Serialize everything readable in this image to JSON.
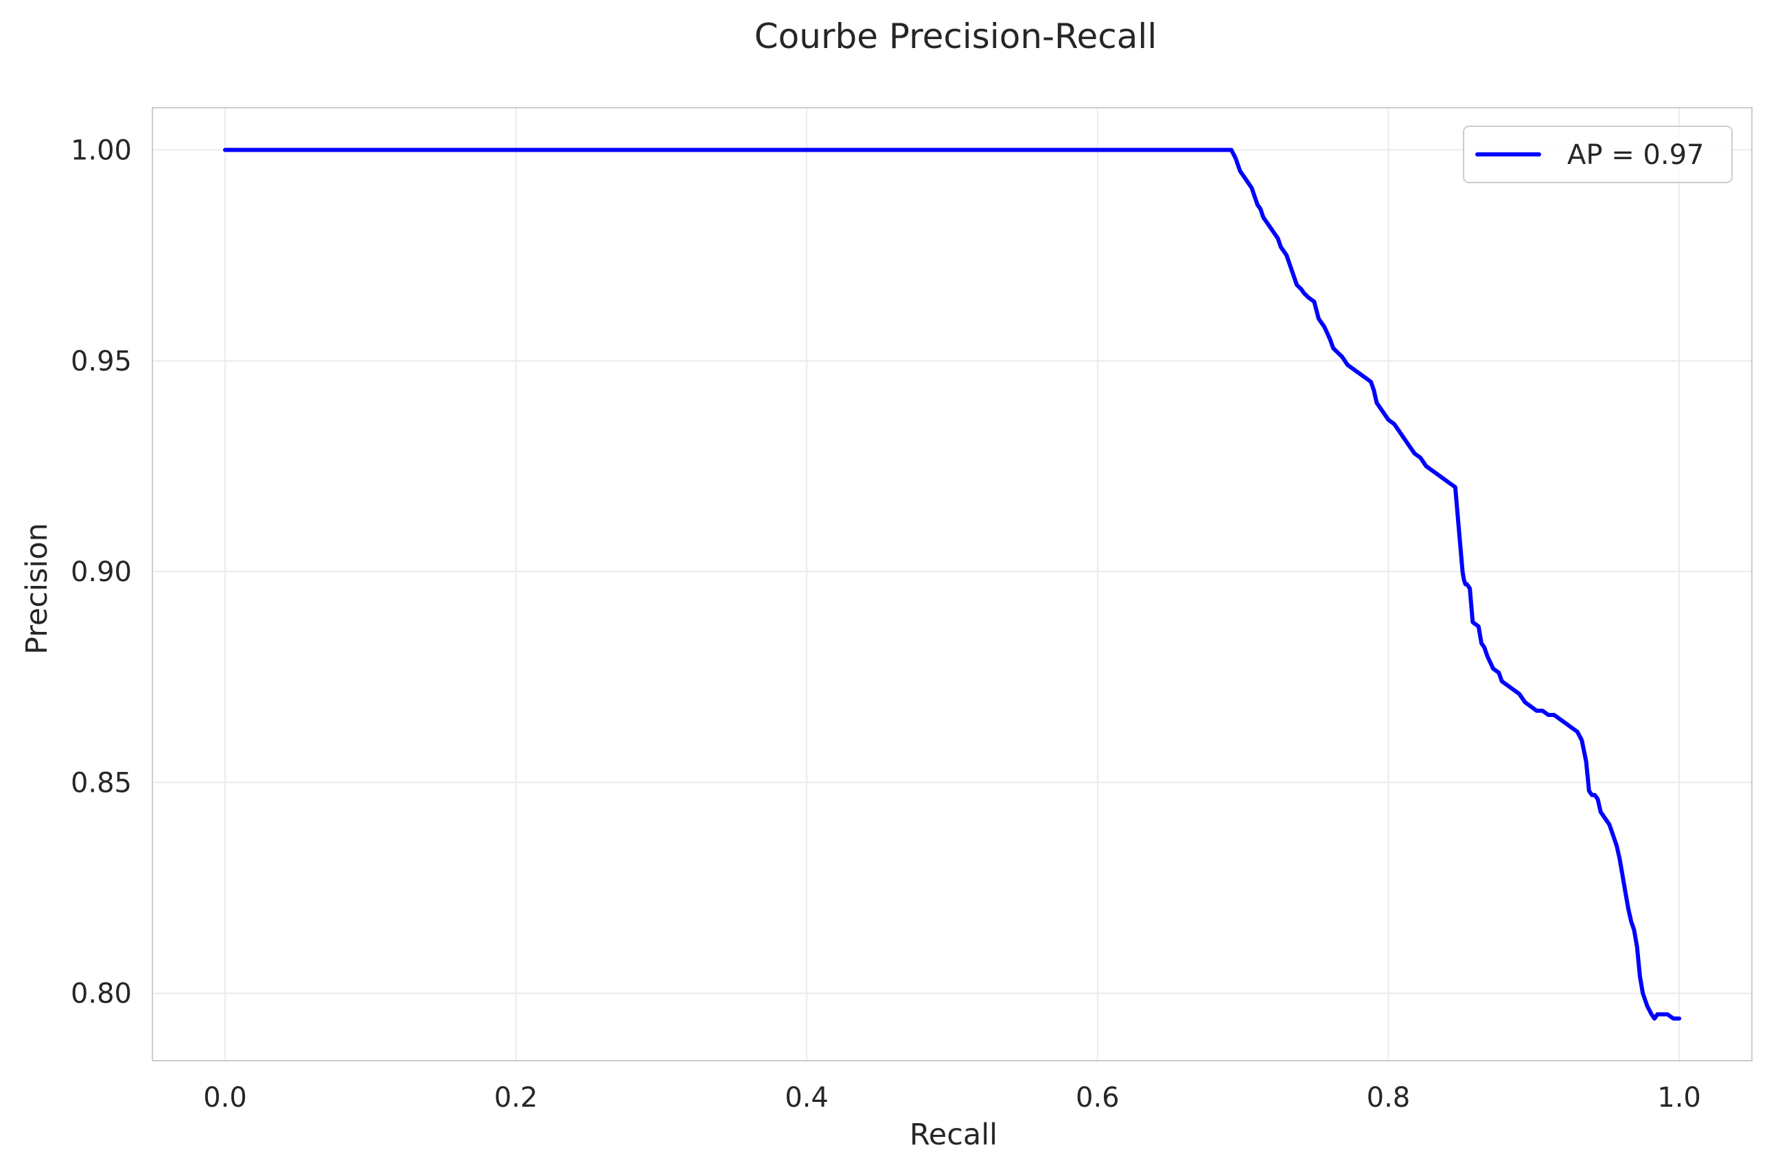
{
  "chart_data": {
    "type": "line",
    "title": "Courbe Precision-Recall",
    "xlabel": "Recall",
    "ylabel": "Precision",
    "xlim": [
      -0.05,
      1.05
    ],
    "ylim": [
      0.784,
      1.01
    ],
    "xticks": [
      0.0,
      0.2,
      0.4,
      0.6,
      0.8,
      1.0
    ],
    "xtick_labels": [
      "0.0",
      "0.2",
      "0.4",
      "0.6",
      "0.8",
      "1.0"
    ],
    "yticks": [
      0.8,
      0.85,
      0.9,
      0.95,
      1.0
    ],
    "ytick_labels": [
      "0.80",
      "0.85",
      "0.90",
      "0.95",
      "1.00"
    ],
    "grid": true,
    "legend_position": "top-right",
    "series": [
      {
        "name": "AP = 0.97",
        "color": "#0000ff",
        "x": [
          0.0,
          0.692,
          0.695,
          0.698,
          0.702,
          0.706,
          0.71,
          0.712,
          0.714,
          0.718,
          0.72,
          0.724,
          0.726,
          0.73,
          0.732,
          0.735,
          0.737,
          0.74,
          0.742,
          0.745,
          0.749,
          0.752,
          0.754,
          0.756,
          0.76,
          0.762,
          0.765,
          0.768,
          0.772,
          0.776,
          0.78,
          0.784,
          0.788,
          0.79,
          0.792,
          0.796,
          0.8,
          0.804,
          0.808,
          0.81,
          0.814,
          0.818,
          0.822,
          0.826,
          0.83,
          0.834,
          0.838,
          0.842,
          0.846,
          0.848,
          0.85,
          0.851,
          0.852,
          0.853,
          0.854,
          0.856,
          0.858,
          0.862,
          0.864,
          0.866,
          0.868,
          0.872,
          0.876,
          0.878,
          0.882,
          0.886,
          0.89,
          0.894,
          0.898,
          0.902,
          0.906,
          0.91,
          0.914,
          0.918,
          0.922,
          0.926,
          0.93,
          0.933,
          0.936,
          0.938,
          0.94,
          0.942,
          0.944,
          0.946,
          0.948,
          0.952,
          0.955,
          0.957,
          0.959,
          0.961,
          0.963,
          0.965,
          0.967,
          0.969,
          0.971,
          0.973,
          0.975,
          0.978,
          0.981,
          0.983,
          0.985,
          0.988,
          0.992,
          0.996,
          1.0
        ],
        "y": [
          1.0,
          1.0,
          0.998,
          0.995,
          0.993,
          0.991,
          0.987,
          0.986,
          0.984,
          0.982,
          0.981,
          0.979,
          0.977,
          0.975,
          0.973,
          0.97,
          0.968,
          0.967,
          0.966,
          0.965,
          0.964,
          0.96,
          0.959,
          0.958,
          0.955,
          0.953,
          0.952,
          0.951,
          0.949,
          0.948,
          0.947,
          0.946,
          0.945,
          0.943,
          0.94,
          0.938,
          0.936,
          0.935,
          0.933,
          0.932,
          0.93,
          0.928,
          0.927,
          0.925,
          0.924,
          0.923,
          0.922,
          0.921,
          0.92,
          0.912,
          0.904,
          0.9,
          0.898,
          0.897,
          0.897,
          0.896,
          0.888,
          0.887,
          0.883,
          0.882,
          0.88,
          0.877,
          0.876,
          0.874,
          0.873,
          0.872,
          0.871,
          0.869,
          0.868,
          0.867,
          0.867,
          0.866,
          0.866,
          0.865,
          0.864,
          0.863,
          0.862,
          0.86,
          0.855,
          0.848,
          0.847,
          0.847,
          0.846,
          0.843,
          0.842,
          0.84,
          0.837,
          0.835,
          0.832,
          0.828,
          0.824,
          0.82,
          0.817,
          0.815,
          0.811,
          0.804,
          0.8,
          0.797,
          0.795,
          0.794,
          0.795,
          0.795,
          0.795,
          0.794,
          0.794
        ]
      }
    ]
  }
}
